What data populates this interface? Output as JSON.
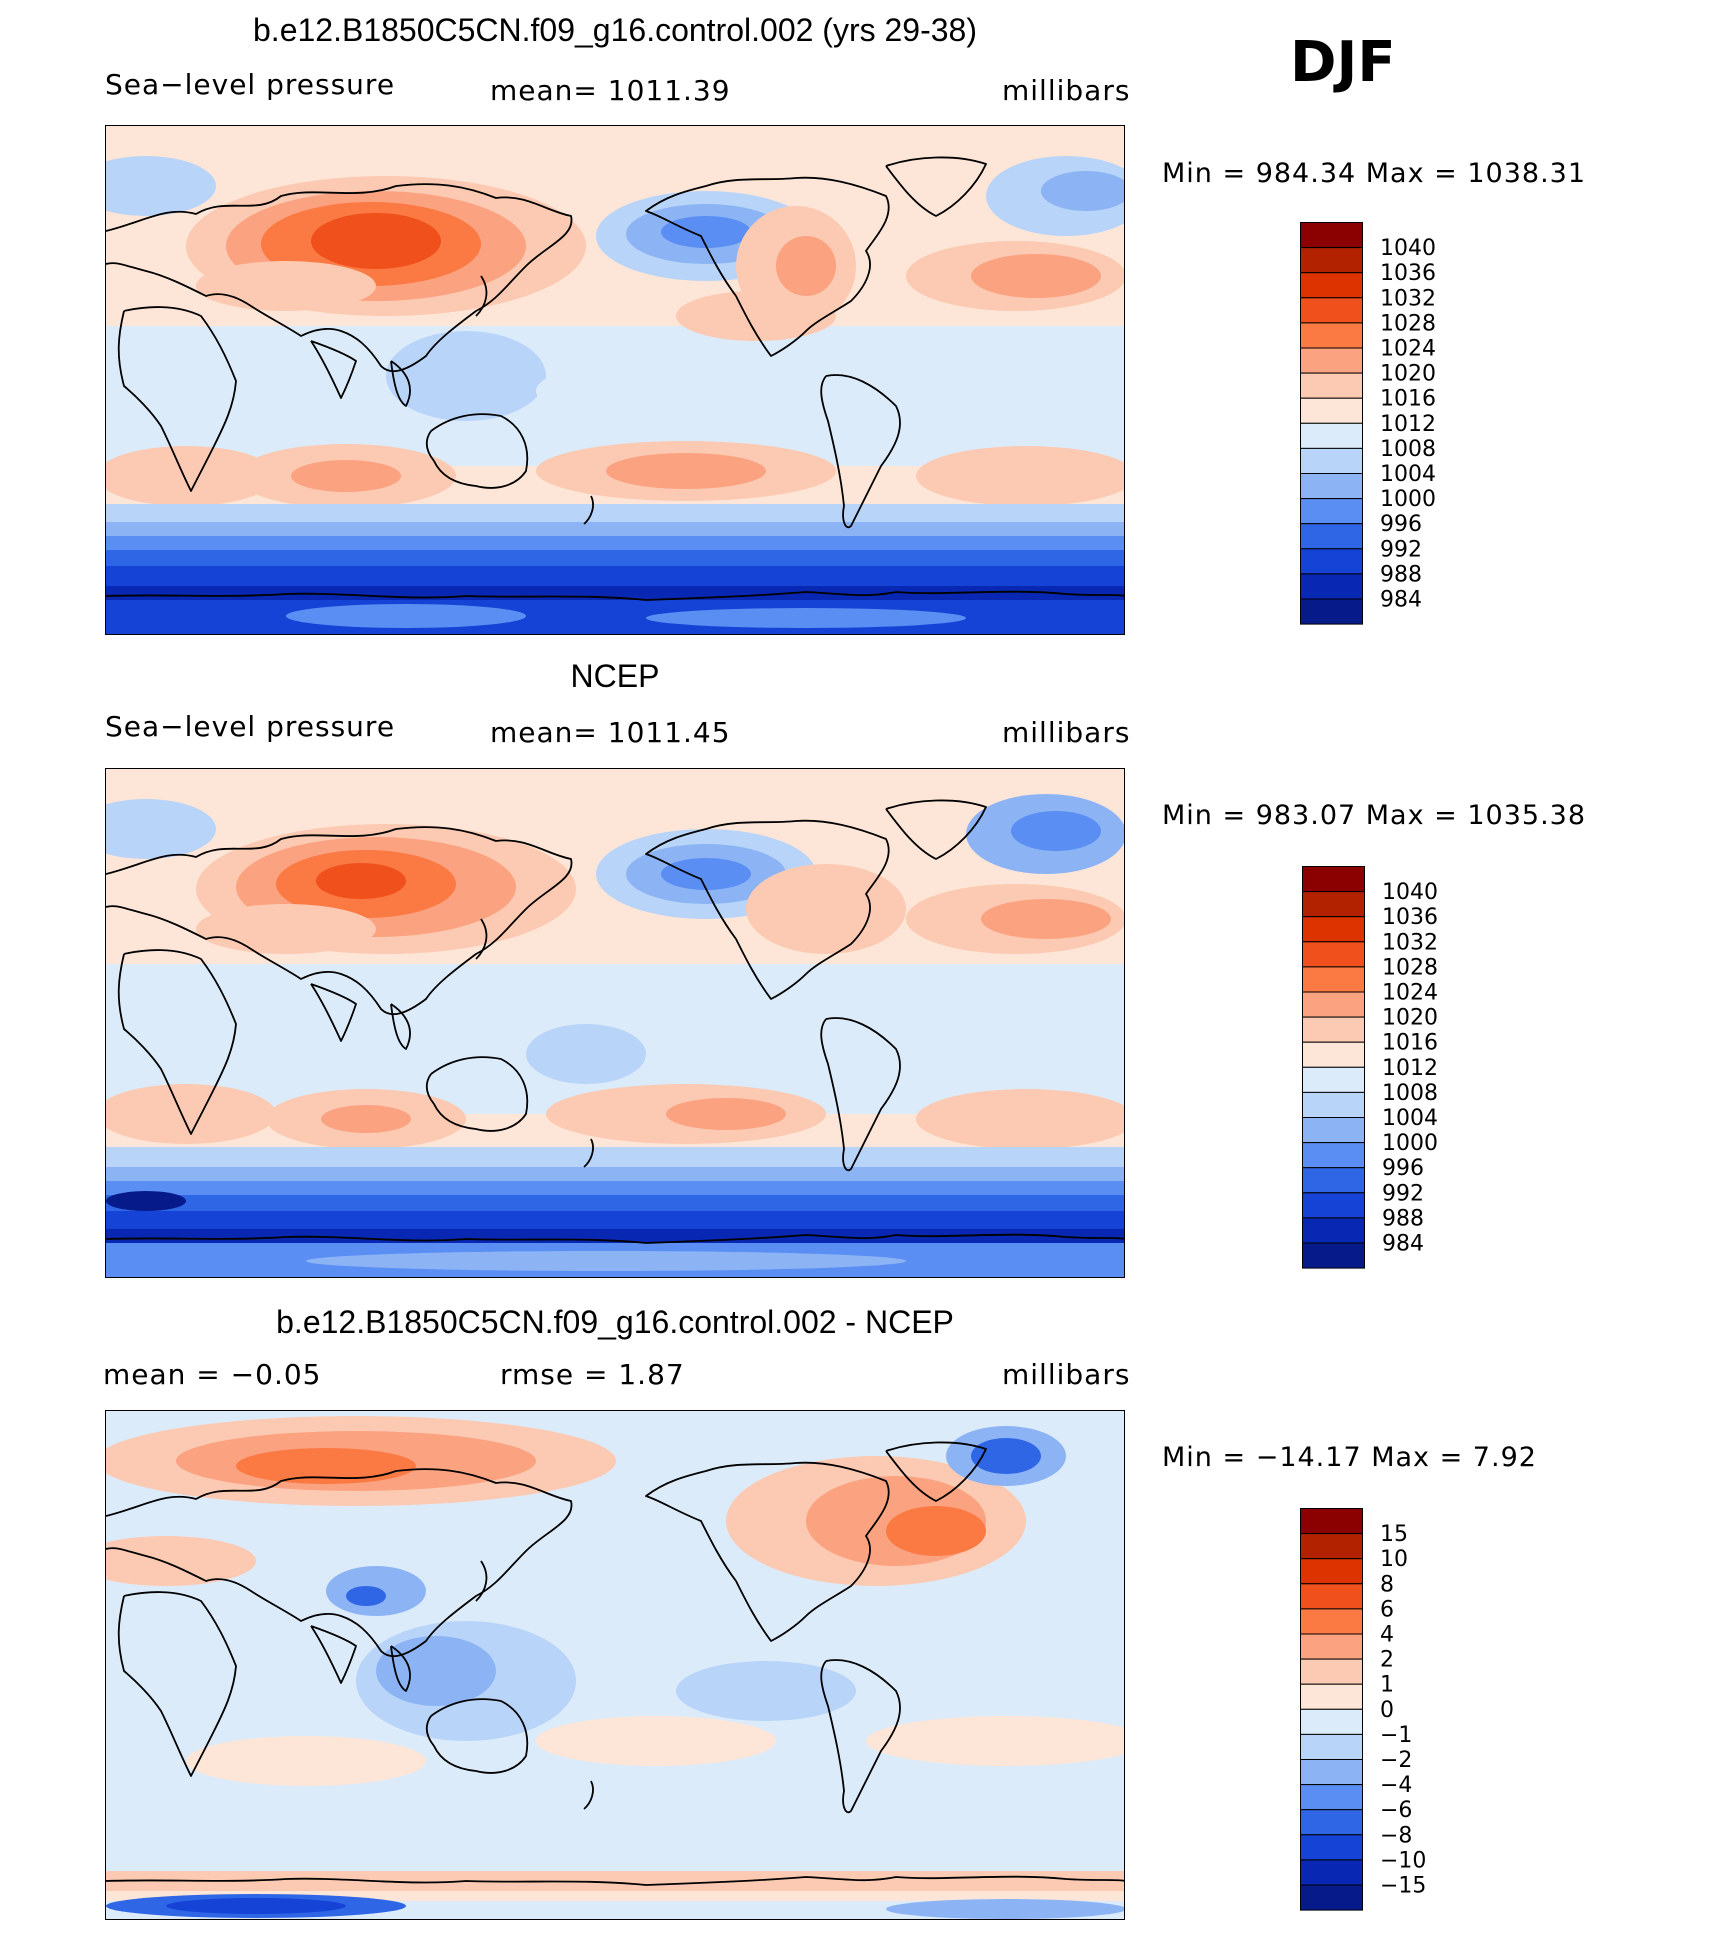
{
  "season": "DJF",
  "colors": {
    "sequential": [
      "#8b0000",
      "#b22200",
      "#dd3300",
      "#f0501c",
      "#fb7a44",
      "#fba281",
      "#fccab2",
      "#fde6d7",
      "#dcebfa",
      "#b8d4f8",
      "#8cb4f5",
      "#5a8ef2",
      "#2f66e6",
      "#1443d6",
      "#0828b3",
      "#061a8a"
    ]
  },
  "panels": [
    {
      "title": "b.e12.B1850C5CN.f09_g16.control.002 (yrs 29-38)",
      "left": "Sea−level pressure",
      "center": "mean=  1011.39",
      "right": "millibars",
      "minmax": "Min  =  984.34  Max  =  1038.31",
      "colorbar": [
        "1040",
        "1036",
        "1032",
        "1028",
        "1024",
        "1020",
        "1016",
        "1012",
        "1008",
        "1004",
        "1000",
        "996",
        "992",
        "988",
        "984"
      ],
      "field": "model"
    },
    {
      "title": "NCEP",
      "left": "Sea−level pressure",
      "center": "mean=  1011.45",
      "right": "millibars",
      "minmax": "Min  =  983.07  Max  =  1035.38",
      "colorbar": [
        "1040",
        "1036",
        "1032",
        "1028",
        "1024",
        "1020",
        "1016",
        "1012",
        "1008",
        "1004",
        "1000",
        "996",
        "992",
        "988",
        "984"
      ],
      "field": "obs"
    },
    {
      "title": "b.e12.B1850C5CN.f09_g16.control.002 - NCEP",
      "left": "mean  =    −0.05",
      "center": "rmse  =     1.87",
      "right": "millibars",
      "minmax": "Min  =  −14.17  Max  =     7.92",
      "colorbar": [
        "15",
        "10",
        "8",
        "6",
        "4",
        "2",
        "1",
        "0",
        "−1",
        "−2",
        "−4",
        "−6",
        "−8",
        "−10",
        "−15"
      ],
      "field": "diff"
    }
  ]
}
